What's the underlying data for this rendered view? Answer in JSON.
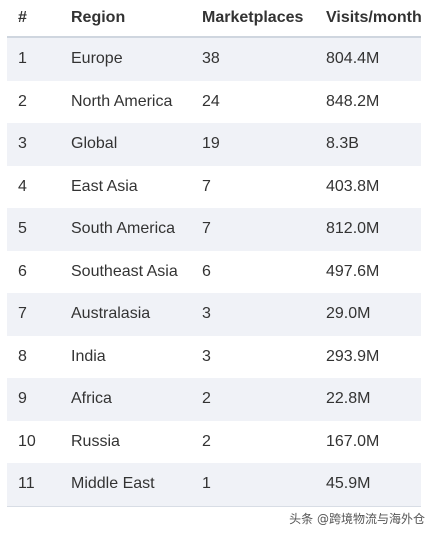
{
  "table": {
    "headers": [
      "#",
      "Region",
      "Marketplaces",
      "Visits/month"
    ],
    "rows": [
      [
        "1",
        "Europe",
        "38",
        "804.4M"
      ],
      [
        "2",
        "North America",
        "24",
        "848.2M"
      ],
      [
        "3",
        "Global",
        "19",
        "8.3B"
      ],
      [
        "4",
        "East Asia",
        "7",
        "403.8M"
      ],
      [
        "5",
        "South America",
        "7",
        "812.0M"
      ],
      [
        "6",
        "Southeast Asia",
        "6",
        "497.6M"
      ],
      [
        "7",
        "Australasia",
        "3",
        "29.0M"
      ],
      [
        "8",
        "India",
        "3",
        "293.9M"
      ],
      [
        "9",
        "Africa",
        "2",
        "22.8M"
      ],
      [
        "10",
        "Russia",
        "2",
        "167.0M"
      ],
      [
        "11",
        "Middle East",
        "1",
        "45.9M"
      ]
    ]
  },
  "watermark": "头条 @跨境物流与海外仓"
}
